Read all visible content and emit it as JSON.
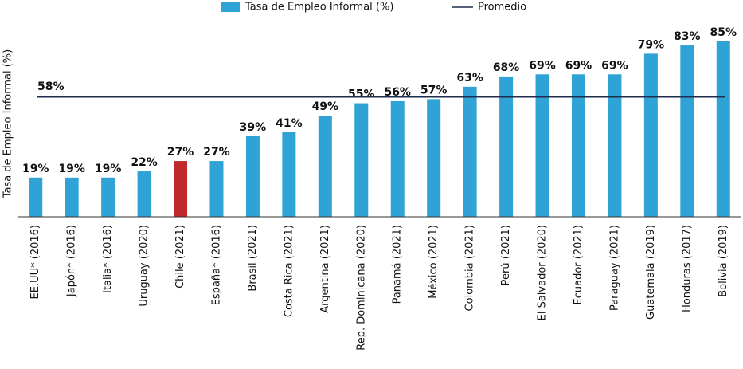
{
  "chart_data": {
    "type": "bar",
    "categories": [
      "EE.UU* (2016)",
      "Japón* (2016)",
      "Italia* (2016)",
      "Uruguay (2020)",
      "Chile (2021)",
      "España* (2016)",
      "Brasil (2021)",
      "Costa Rica (2021)",
      "Argentina (2021)",
      "Rep. Dominicana (2020)",
      "Panamá (2021)",
      "México (2021)",
      "Colombia (2021)",
      "Perú (2021)",
      "El Salvador (2020)",
      "Ecuador (2021)",
      "Paraguay (2021)",
      "Guatemala (2019)",
      "Honduras (2017)",
      "Bolivia (2019)"
    ],
    "series": [
      {
        "name": "Tasa de Empleo Informal (%)",
        "color": "#2fa3d6",
        "values": [
          19,
          19,
          19,
          22,
          27,
          27,
          39,
          41,
          49,
          55,
          56,
          57,
          63,
          68,
          69,
          69,
          69,
          79,
          83,
          85
        ],
        "value_labels": [
          "19%",
          "19%",
          "19%",
          "22%",
          "27%",
          "27%",
          "39%",
          "41%",
          "49%",
          "55%",
          "56%",
          "57%",
          "63%",
          "68%",
          "69%",
          "69%",
          "69%",
          "79%",
          "83%",
          "85%"
        ],
        "colors": [
          "#2fa3d6",
          "#2fa3d6",
          "#2fa3d6",
          "#2fa3d6",
          "#c0282b",
          "#2fa3d6",
          "#2fa3d6",
          "#2fa3d6",
          "#2fa3d6",
          "#2fa3d6",
          "#2fa3d6",
          "#2fa3d6",
          "#2fa3d6",
          "#2fa3d6",
          "#2fa3d6",
          "#2fa3d6",
          "#2fa3d6",
          "#2fa3d6",
          "#2fa3d6",
          "#2fa3d6"
        ]
      }
    ],
    "reference_line": {
      "name": "Promedio",
      "value": 58,
      "value_label": "58%",
      "color": "#1f2d4e"
    },
    "ylabel": "Tasa de Empleo Informal (%)",
    "ylim": [
      0,
      100
    ]
  }
}
